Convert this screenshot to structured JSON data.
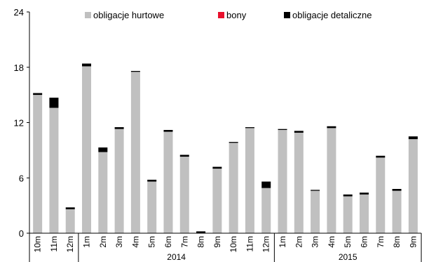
{
  "chart_data": {
    "type": "bar",
    "stacked": true,
    "title": "",
    "xlabel": "",
    "ylabel": "",
    "ylim": [
      0,
      24
    ],
    "yticks": [
      0,
      6,
      12,
      18,
      24
    ],
    "grid": false,
    "legend_position": "top",
    "categories": [
      "10m",
      "11m",
      "12m",
      "1m",
      "2m",
      "3m",
      "4m",
      "5m",
      "6m",
      "7m",
      "8m",
      "9m",
      "10m",
      "11m",
      "12m",
      "1m",
      "2m",
      "3m",
      "4m",
      "5m",
      "6m",
      "7m",
      "8m",
      "9m"
    ],
    "groups": [
      {
        "label": "2014",
        "start": 3,
        "end": 14
      },
      {
        "label": "2015",
        "start": 15,
        "end": 23
      }
    ],
    "series": [
      {
        "name": "obligacje hurtowe",
        "color": "#c0c0c0",
        "values": [
          15.0,
          13.6,
          2.6,
          18.1,
          8.8,
          11.3,
          17.5,
          5.6,
          11.0,
          8.3,
          0.0,
          7.0,
          9.8,
          11.4,
          4.9,
          11.2,
          10.9,
          4.6,
          11.4,
          4.0,
          4.2,
          8.2,
          4.6,
          10.2
        ]
      },
      {
        "name": "bony",
        "color": "#e8112d",
        "values": [
          0,
          0,
          0,
          0,
          0,
          0,
          0,
          0,
          0,
          0,
          0,
          0,
          0,
          0,
          0,
          0,
          0,
          0,
          0,
          0,
          0,
          0,
          0,
          0
        ]
      },
      {
        "name": "obligacje detaliczne",
        "color": "#000000",
        "values": [
          0.2,
          1.1,
          0.2,
          0.3,
          0.5,
          0.2,
          0.1,
          0.2,
          0.2,
          0.2,
          0.2,
          0.2,
          0.1,
          0.1,
          0.7,
          0.1,
          0.2,
          0.1,
          0.2,
          0.2,
          0.2,
          0.2,
          0.2,
          0.3
        ]
      }
    ]
  }
}
